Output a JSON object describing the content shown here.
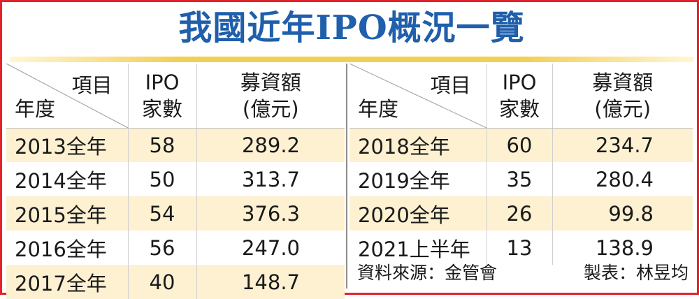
{
  "title": "我國近年IPO概況一覽",
  "header": {
    "item": "項目",
    "year": "年度",
    "ipo_line1": "IPO",
    "ipo_line2": "家數",
    "amount_line1": "募資額",
    "amount_line2": "(億元)"
  },
  "rows_left": [
    {
      "year": "2013全年",
      "ipo": "58",
      "amount": "289.2"
    },
    {
      "year": "2014全年",
      "ipo": "50",
      "amount": "313.7"
    },
    {
      "year": "2015全年",
      "ipo": "54",
      "amount": "376.3"
    },
    {
      "year": "2016全年",
      "ipo": "56",
      "amount": "247.0"
    },
    {
      "year": "2017全年",
      "ipo": "40",
      "amount": "148.7"
    }
  ],
  "rows_right": [
    {
      "year": "2018全年",
      "ipo": "60",
      "amount": "234.7"
    },
    {
      "year": "2019全年",
      "ipo": "35",
      "amount": "280.4"
    },
    {
      "year": "2020全年",
      "ipo": "26",
      "amount": "99.8"
    },
    {
      "year": "2021上半年",
      "ipo": "13",
      "amount": "138.9"
    }
  ],
  "footer": {
    "source": "資料來源：金管會",
    "maker": "製表：林昱均"
  },
  "colors": {
    "title": "#1f5fab",
    "border": "#e3222c",
    "row_shade": "#fdf1d2",
    "rule": "#f2cf53"
  }
}
